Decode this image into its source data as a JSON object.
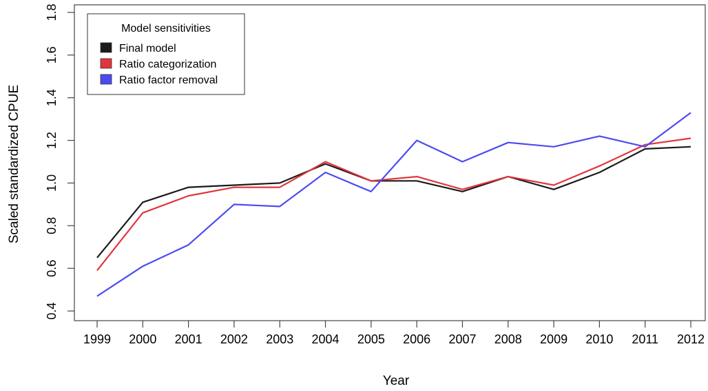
{
  "chart_data": {
    "type": "line",
    "title": "",
    "xlabel": "Year",
    "ylabel": "Scaled standardized CPUE",
    "categories": [
      "1999",
      "2000",
      "2001",
      "2002",
      "2003",
      "2004",
      "2005",
      "2006",
      "2007",
      "2008",
      "2009",
      "2010",
      "2011",
      "2012"
    ],
    "yticks": [
      "0.4",
      "0.6",
      "0.8",
      "1.0",
      "1.2",
      "1.4",
      "1.6",
      "1.8"
    ],
    "ylim": [
      0.35,
      1.85
    ],
    "grid": false,
    "legend": {
      "title": "Model sensitivities",
      "placement": "top-left"
    },
    "series": [
      {
        "name": "Final model",
        "color": "#1a1a1a",
        "values": [
          0.65,
          0.91,
          0.98,
          0.99,
          1.0,
          1.09,
          1.01,
          1.01,
          0.96,
          1.03,
          0.97,
          1.05,
          1.16,
          1.17
        ]
      },
      {
        "name": "Ratio categorization",
        "color": "#e0363b",
        "values": [
          0.59,
          0.86,
          0.94,
          0.98,
          0.98,
          1.1,
          1.01,
          1.03,
          0.97,
          1.03,
          0.99,
          1.08,
          1.18,
          1.21
        ]
      },
      {
        "name": "Ratio factor removal",
        "color": "#4b4bf2",
        "values": [
          0.47,
          0.61,
          0.71,
          0.9,
          0.89,
          1.05,
          0.96,
          1.2,
          1.1,
          1.19,
          1.17,
          1.22,
          1.17,
          1.33
        ]
      }
    ]
  }
}
